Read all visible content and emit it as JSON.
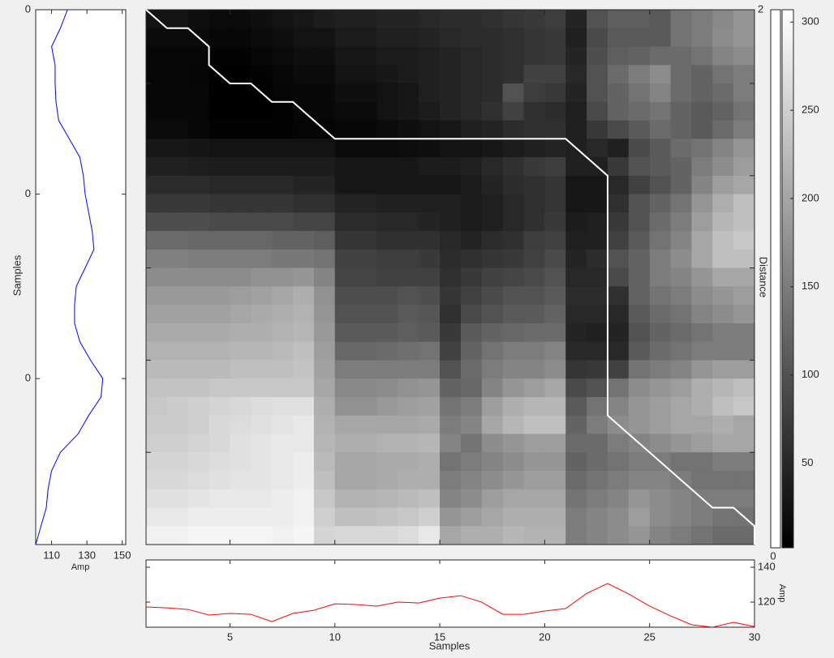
{
  "chart_data": [
    {
      "type": "line",
      "orientation": "vertical",
      "xlabel": "Amp",
      "ylabel": "Samples",
      "x": [
        1,
        2,
        3,
        4,
        5,
        6,
        7,
        8,
        9,
        10,
        11,
        12,
        13,
        14,
        15,
        16,
        17,
        18,
        19,
        20,
        21,
        22,
        23,
        24,
        25,
        26,
        27,
        28,
        29,
        30
      ],
      "series": [
        {
          "color": "#0000ff",
          "values": [
            119,
            115,
            110,
            112,
            112,
            112.5,
            114,
            120,
            126,
            128,
            129,
            131,
            133,
            134,
            129,
            124,
            123,
            123,
            126,
            132,
            139,
            138,
            131,
            125,
            115,
            110,
            108,
            107,
            104,
            101
          ]
        }
      ],
      "xlim": [
        101,
        152
      ],
      "xticks": [
        110,
        130,
        150
      ],
      "ylim": [
        1,
        30
      ],
      "yticks": [
        {
          "value": 1,
          "label": "0"
        },
        {
          "value": 11,
          "label": "0"
        },
        {
          "value": 21,
          "label": "0"
        }
      ]
    },
    {
      "type": "heatmap",
      "ylabel": "Distance",
      "colormap": "gray",
      "clim": [
        2,
        307
      ],
      "xlim": [
        1,
        30
      ],
      "ylim": [
        1,
        30
      ],
      "y2ticks": [
        {
          "value": 1,
          "label": "2"
        }
      ],
      "matrix": [
        [
          25,
          25,
          20,
          15,
          15,
          20,
          25,
          30,
          35,
          40,
          40,
          45,
          45,
          50,
          55,
          55,
          60,
          65,
          70,
          75,
          45,
          100,
          115,
          115,
          110,
          140,
          150,
          165,
          180
        ],
        [
          15,
          15,
          15,
          10,
          10,
          15,
          20,
          25,
          25,
          35,
          35,
          40,
          40,
          45,
          50,
          55,
          55,
          60,
          65,
          70,
          40,
          90,
          110,
          110,
          110,
          140,
          150,
          170,
          180
        ],
        [
          10,
          10,
          10,
          5,
          5,
          10,
          15,
          20,
          20,
          30,
          30,
          35,
          35,
          40,
          45,
          50,
          55,
          60,
          65,
          70,
          45,
          95,
          115,
          120,
          130,
          130,
          140,
          160,
          170
        ],
        [
          10,
          10,
          8,
          3,
          3,
          5,
          10,
          15,
          15,
          25,
          25,
          30,
          35,
          40,
          45,
          50,
          55,
          60,
          80,
          80,
          50,
          100,
          130,
          150,
          170,
          130,
          120,
          140,
          150
        ],
        [
          10,
          12,
          10,
          2,
          2,
          3,
          8,
          12,
          12,
          20,
          20,
          25,
          30,
          40,
          45,
          50,
          55,
          100,
          75,
          70,
          45,
          100,
          120,
          140,
          160,
          130,
          120,
          130,
          150
        ],
        [
          12,
          12,
          10,
          3,
          3,
          3,
          5,
          10,
          10,
          15,
          15,
          25,
          30,
          35,
          45,
          50,
          60,
          80,
          60,
          55,
          40,
          90,
          120,
          130,
          140,
          120,
          110,
          120,
          140
        ],
        [
          15,
          15,
          12,
          5,
          5,
          5,
          5,
          8,
          8,
          10,
          10,
          15,
          20,
          25,
          30,
          40,
          45,
          55,
          60,
          60,
          40,
          70,
          90,
          110,
          130,
          120,
          110,
          130,
          150
        ],
        [
          30,
          30,
          28,
          25,
          25,
          25,
          25,
          25,
          25,
          15,
          15,
          15,
          18,
          20,
          25,
          25,
          30,
          35,
          40,
          45,
          40,
          50,
          40,
          90,
          110,
          130,
          140,
          160,
          180
        ],
        [
          40,
          40,
          38,
          35,
          35,
          35,
          35,
          35,
          35,
          30,
          30,
          30,
          30,
          35,
          35,
          40,
          50,
          60,
          70,
          75,
          40,
          40,
          70,
          100,
          110,
          120,
          150,
          170,
          190
        ],
        [
          55,
          55,
          55,
          50,
          50,
          50,
          50,
          45,
          45,
          30,
          30,
          30,
          30,
          30,
          30,
          35,
          45,
          55,
          60,
          65,
          30,
          30,
          50,
          80,
          100,
          120,
          160,
          190,
          200
        ],
        [
          70,
          70,
          70,
          65,
          65,
          65,
          65,
          60,
          60,
          45,
          45,
          40,
          40,
          40,
          40,
          35,
          40,
          50,
          60,
          65,
          30,
          30,
          60,
          100,
          120,
          140,
          180,
          210,
          230
        ],
        [
          95,
          95,
          95,
          90,
          90,
          90,
          90,
          85,
          85,
          55,
          55,
          50,
          50,
          45,
          40,
          35,
          40,
          50,
          60,
          70,
          35,
          40,
          70,
          100,
          130,
          150,
          190,
          220,
          230
        ],
        [
          130,
          130,
          125,
          125,
          125,
          125,
          120,
          120,
          115,
          65,
          65,
          60,
          60,
          60,
          50,
          45,
          55,
          60,
          75,
          80,
          40,
          40,
          80,
          110,
          140,
          160,
          200,
          230,
          240
        ],
        [
          155,
          155,
          150,
          150,
          150,
          150,
          145,
          145,
          140,
          80,
          80,
          75,
          75,
          70,
          55,
          60,
          65,
          70,
          80,
          90,
          45,
          55,
          100,
          120,
          150,
          170,
          200,
          230,
          230
        ],
        [
          170,
          170,
          170,
          170,
          170,
          175,
          175,
          180,
          160,
          85,
          85,
          80,
          80,
          80,
          60,
          70,
          80,
          85,
          90,
          100,
          50,
          50,
          90,
          120,
          150,
          160,
          180,
          200,
          200
        ],
        [
          185,
          185,
          185,
          185,
          190,
          195,
          200,
          210,
          175,
          95,
          95,
          95,
          100,
          95,
          65,
          80,
          90,
          100,
          100,
          110,
          55,
          55,
          60,
          120,
          140,
          150,
          170,
          180,
          190
        ],
        [
          195,
          195,
          195,
          195,
          200,
          205,
          210,
          215,
          180,
          100,
          100,
          100,
          110,
          105,
          60,
          90,
          100,
          110,
          110,
          120,
          50,
          50,
          50,
          110,
          130,
          140,
          160,
          170,
          180
        ],
        [
          205,
          205,
          205,
          205,
          210,
          210,
          215,
          220,
          185,
          110,
          110,
          110,
          115,
          110,
          70,
          110,
          120,
          125,
          130,
          130,
          45,
          40,
          45,
          100,
          120,
          130,
          140,
          150,
          150
        ],
        [
          215,
          215,
          215,
          215,
          220,
          220,
          225,
          230,
          190,
          125,
          125,
          130,
          135,
          140,
          80,
          120,
          140,
          150,
          150,
          160,
          50,
          50,
          50,
          110,
          130,
          140,
          150,
          150,
          150
        ],
        [
          225,
          225,
          225,
          225,
          230,
          230,
          230,
          235,
          195,
          150,
          150,
          150,
          150,
          150,
          100,
          130,
          150,
          160,
          160,
          170,
          65,
          70,
          80,
          140,
          150,
          160,
          180,
          190,
          190
        ],
        [
          235,
          235,
          235,
          240,
          240,
          240,
          240,
          240,
          200,
          165,
          165,
          170,
          175,
          180,
          120,
          125,
          160,
          180,
          190,
          200,
          90,
          100,
          140,
          170,
          180,
          190,
          210,
          220,
          230
        ],
        [
          240,
          245,
          250,
          255,
          260,
          265,
          270,
          270,
          210,
          175,
          175,
          185,
          190,
          195,
          140,
          150,
          190,
          210,
          220,
          220,
          110,
          140,
          160,
          180,
          190,
          200,
          210,
          230,
          240
        ],
        [
          245,
          245,
          250,
          260,
          265,
          270,
          275,
          280,
          215,
          200,
          200,
          200,
          200,
          205,
          150,
          160,
          200,
          220,
          230,
          230,
          120,
          150,
          170,
          180,
          190,
          200,
          200,
          210,
          200
        ],
        [
          250,
          250,
          255,
          260,
          270,
          275,
          280,
          280,
          220,
          210,
          210,
          215,
          215,
          220,
          160,
          140,
          170,
          180,
          190,
          190,
          130,
          130,
          150,
          160,
          170,
          180,
          190,
          200,
          200
        ],
        [
          255,
          255,
          260,
          265,
          270,
          275,
          280,
          285,
          225,
          200,
          200,
          205,
          205,
          210,
          140,
          150,
          160,
          170,
          180,
          180,
          120,
          130,
          140,
          150,
          150,
          140,
          140,
          150,
          150
        ],
        [
          260,
          260,
          265,
          270,
          275,
          275,
          280,
          285,
          230,
          200,
          200,
          205,
          210,
          210,
          150,
          160,
          170,
          180,
          190,
          190,
          130,
          140,
          150,
          160,
          160,
          150,
          140,
          140,
          140
        ],
        [
          270,
          270,
          275,
          280,
          280,
          280,
          285,
          290,
          240,
          215,
          215,
          220,
          225,
          230,
          160,
          170,
          190,
          200,
          200,
          200,
          140,
          150,
          160,
          180,
          170,
          160,
          150,
          150,
          150
        ],
        [
          280,
          280,
          285,
          285,
          285,
          285,
          285,
          290,
          250,
          230,
          230,
          235,
          240,
          250,
          180,
          190,
          200,
          210,
          210,
          210,
          150,
          160,
          170,
          190,
          170,
          160,
          150,
          140,
          140
        ],
        [
          290,
          290,
          295,
          295,
          295,
          295,
          290,
          295,
          255,
          260,
          260,
          260,
          265,
          280,
          200,
          210,
          210,
          220,
          215,
          215,
          150,
          160,
          170,
          180,
          160,
          150,
          140,
          130,
          130
        ]
      ],
      "path": {
        "color": "#ffffff",
        "x": [
          1,
          2,
          3,
          4,
          4,
          5,
          6,
          7,
          8,
          10,
          21,
          23,
          23,
          28,
          29,
          30,
          30
        ],
        "y": [
          1,
          2,
          2,
          3,
          4,
          5,
          5,
          6,
          6,
          8,
          8,
          10,
          23,
          28,
          28,
          29,
          30
        ]
      }
    },
    {
      "type": "line",
      "orientation": "horizontal",
      "xlabel": "Samples",
      "ylabel": "Amp",
      "x": [
        1,
        2,
        3,
        4,
        5,
        6,
        7,
        8,
        9,
        10,
        11,
        12,
        13,
        14,
        15,
        16,
        17,
        18,
        19,
        20,
        21,
        22,
        23,
        24,
        25,
        26,
        27,
        28,
        29,
        30
      ],
      "series": [
        {
          "color": "#ff0000",
          "values": [
            117.2,
            116.7,
            115.8,
            112.6,
            113.5,
            113,
            108.8,
            113.5,
            115.3,
            119,
            118.6,
            117.7,
            120,
            119.5,
            122.3,
            123.7,
            120,
            113,
            113,
            114.9,
            116.3,
            125,
            130.7,
            124.7,
            117.7,
            112.1,
            107,
            105.6,
            108.4,
            106
          ]
        }
      ],
      "xlim": [
        1,
        30
      ],
      "xticks": [
        5,
        10,
        15,
        20,
        25,
        30
      ],
      "ylim": [
        105.6,
        144.2
      ],
      "yticks": [
        120,
        140
      ]
    },
    {
      "type": "colorbar",
      "colormap": "gray",
      "ylim": [
        2,
        307
      ],
      "yticks": [
        50,
        100,
        150,
        200,
        250,
        300
      ],
      "side_label": "0"
    }
  ]
}
